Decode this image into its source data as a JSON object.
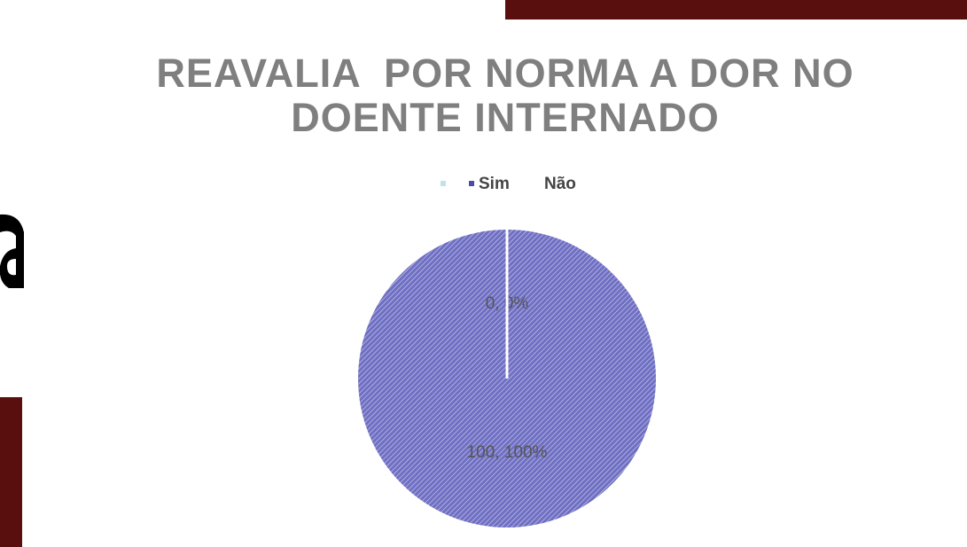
{
  "chart_data": {
    "type": "pie",
    "title": "REAVALIA  POR NORMA A DOR NO DOENTE INTERNADO",
    "categories": [
      "Sim",
      "Não"
    ],
    "values": [
      100,
      0
    ],
    "value_labels": [
      "100, 100%",
      "0, 0%"
    ],
    "colors": [
      "#6f6fc4",
      "#bfe3ea"
    ],
    "legend": "top"
  }
}
